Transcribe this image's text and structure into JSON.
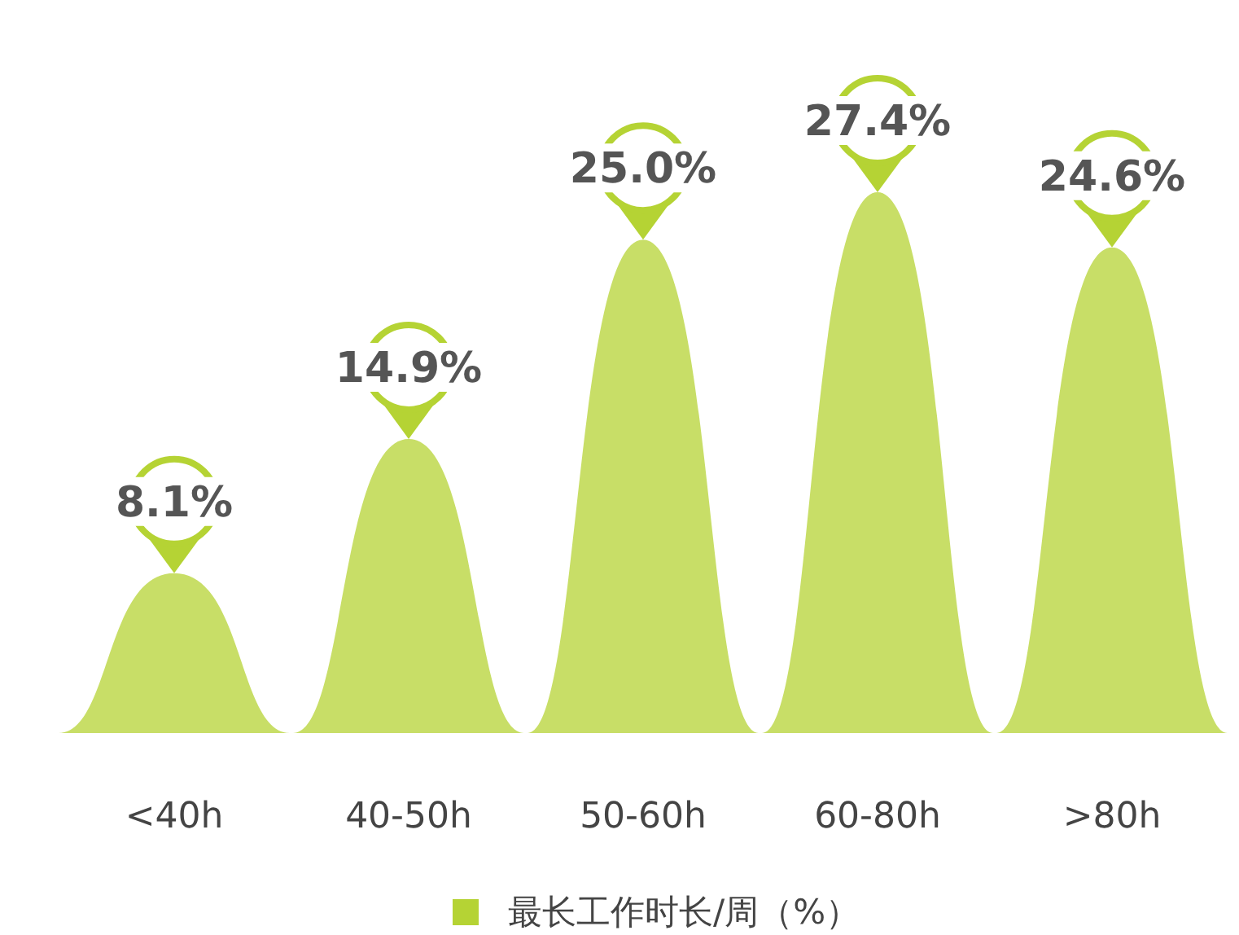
{
  "chart_data": {
    "type": "bar",
    "categories": [
      "<40h",
      "40-50h",
      "50-60h",
      "60-80h",
      ">80h"
    ],
    "series": [
      {
        "name": "最长工作时长/周（%）",
        "color": "#b5d334",
        "values": [
          8.1,
          14.9,
          25.0,
          27.4,
          24.6
        ],
        "value_labels": [
          "8.1%",
          "14.9%",
          "25.0%",
          "27.4%",
          "24.6%"
        ]
      }
    ],
    "legend": "bottom"
  }
}
